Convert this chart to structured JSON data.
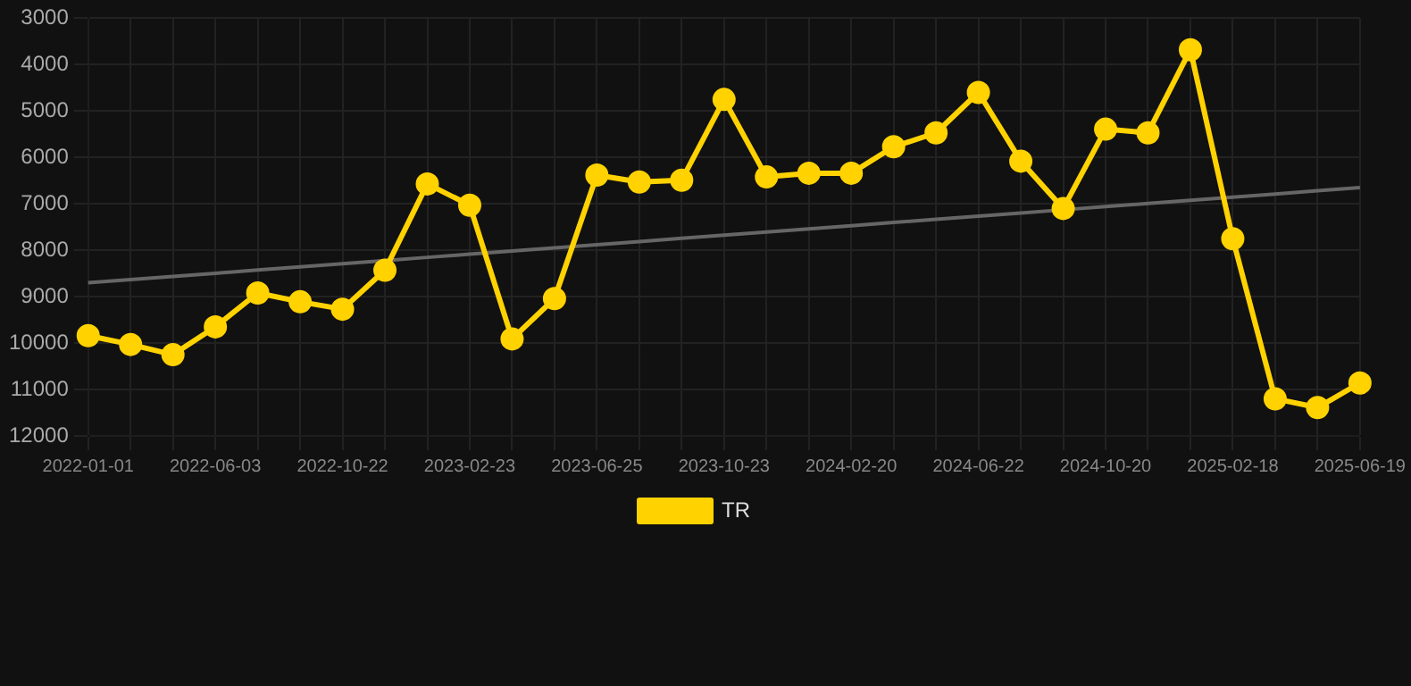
{
  "chart_data": {
    "type": "line",
    "categories": [
      "2022-01-01",
      null,
      null,
      "2022-06-03",
      null,
      null,
      "2022-10-22",
      null,
      null,
      "2023-02-23",
      null,
      null,
      "2023-06-25",
      null,
      null,
      "2023-10-23",
      null,
      null,
      "2024-02-20",
      null,
      null,
      "2024-06-22",
      null,
      null,
      "2024-10-20",
      null,
      null,
      "2025-02-18",
      null,
      null,
      "2025-06-19"
    ],
    "series": [
      {
        "name": "TR",
        "color": "#ffd200",
        "marker": "circle",
        "values": [
          9840,
          10030,
          10250,
          9650,
          8920,
          9110,
          9270,
          8430,
          6570,
          7030,
          9910,
          9040,
          6380,
          6530,
          6490,
          4750,
          6420,
          6340,
          6340,
          5770,
          5470,
          4600,
          6080,
          7100,
          5390,
          5470,
          3680,
          7750,
          11200,
          11390,
          10860
        ]
      },
      {
        "type": "line",
        "color": "#666666",
        "marker": "none",
        "values": [
          8700,
          8632,
          8563,
          8495,
          8427,
          8358,
          8290,
          8222,
          8153,
          8085,
          8017,
          7948,
          7880,
          7812,
          7743,
          7675,
          7607,
          7538,
          7470,
          7402,
          7333,
          7265,
          7197,
          7128,
          7060,
          6992,
          6923,
          6855,
          6787,
          6718,
          6650
        ]
      }
    ],
    "ylim": [
      12000,
      3000
    ],
    "yticks": [
      3000,
      4000,
      5000,
      6000,
      7000,
      8000,
      9000,
      10000,
      11000,
      12000
    ],
    "grid": true,
    "legend": "bottom"
  }
}
